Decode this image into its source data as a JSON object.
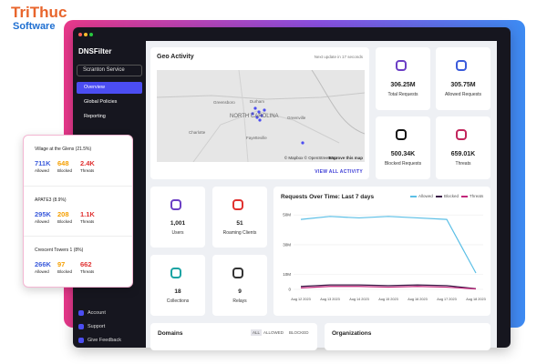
{
  "brand": {
    "name": "TriThuc",
    "sub": "Software"
  },
  "sidebar": {
    "logo": "DNSFilter",
    "org": "Scranton Service",
    "nav": [
      "Overview",
      "Global Policies",
      "Reporting"
    ],
    "bottom": [
      "Account",
      "Support",
      "Give Feedback"
    ]
  },
  "geo": {
    "title": "Geo Activity",
    "update": "Next update in 17 seconds",
    "map_labels": [
      "Greensboro",
      "Durham",
      "NORTH CAROLINA",
      "Charlotte",
      "Fayetteville",
      "Greenville"
    ],
    "attribution": "© Mapbox © OpenStreetMap",
    "improve": "Improve this map",
    "link": "VIEW ALL ACTIVITY"
  },
  "stats": [
    {
      "value": "306.25M",
      "label": "Total Requests"
    },
    {
      "value": "305.75M",
      "label": "Allowed Requests"
    },
    {
      "value": "500.34K",
      "label": "Blocked Requests"
    },
    {
      "value": "659.01K",
      "label": "Threats"
    }
  ],
  "counts": [
    {
      "value": "1,001",
      "label": "Users"
    },
    {
      "value": "51",
      "label": "Roaming Clients"
    },
    {
      "value": "18",
      "label": "Collections"
    },
    {
      "value": "9",
      "label": "Relays"
    }
  ],
  "chart_data": {
    "type": "line",
    "title": "Requests Over Time: Last 7 days",
    "categories": [
      "Aug 12 2023",
      "Aug 13 2023",
      "Aug 14 2023",
      "Aug 15 2023",
      "Aug 16 2023",
      "Aug 17 2023",
      "Aug 18 2023"
    ],
    "series": [
      {
        "name": "Allowed",
        "color": "#5bbfe6",
        "values": [
          47000000,
          49000000,
          48000000,
          49000000,
          48000000,
          47000000,
          11000000
        ]
      },
      {
        "name": "Blocked",
        "color": "#3a1846",
        "values": [
          2000000,
          3000000,
          3000000,
          2500000,
          3000000,
          2500000,
          500000
        ]
      },
      {
        "name": "Threats",
        "color": "#c2267a",
        "values": [
          1000000,
          2000000,
          2000000,
          1500000,
          2000000,
          1500000,
          300000
        ]
      }
    ],
    "ylim": [
      0,
      55000000
    ],
    "yticks": [
      {
        "value": 0,
        "label": "0"
      },
      {
        "value": 10000000,
        "label": "10M"
      },
      {
        "value": 30000000,
        "label": "30M"
      },
      {
        "value": 50000000,
        "label": "50M"
      }
    ],
    "grid": true
  },
  "domains": {
    "title": "Domains",
    "tabs": [
      "ALL",
      "ALLOWED",
      "BLOCKED"
    ]
  },
  "organizations": {
    "title": "Organizations"
  },
  "locations": [
    {
      "name": "Village at the Glens (21.5%)",
      "metrics": [
        {
          "value": "711K",
          "label": "Allowed"
        },
        {
          "value": "648",
          "label": "Blocked"
        },
        {
          "value": "2.4K",
          "label": "Threats"
        }
      ]
    },
    {
      "name": "APATE3 (8.9%)",
      "metrics": [
        {
          "value": "295K",
          "label": "Allowed"
        },
        {
          "value": "208",
          "label": "Blocked"
        },
        {
          "value": "1.1K",
          "label": "Threats"
        }
      ]
    },
    {
      "name": "Crescent Towers 1 (8%)",
      "metrics": [
        {
          "value": "266K",
          "label": "Allowed"
        },
        {
          "value": "97",
          "label": "Blocked"
        },
        {
          "value": "662",
          "label": "Threats"
        }
      ]
    }
  ]
}
